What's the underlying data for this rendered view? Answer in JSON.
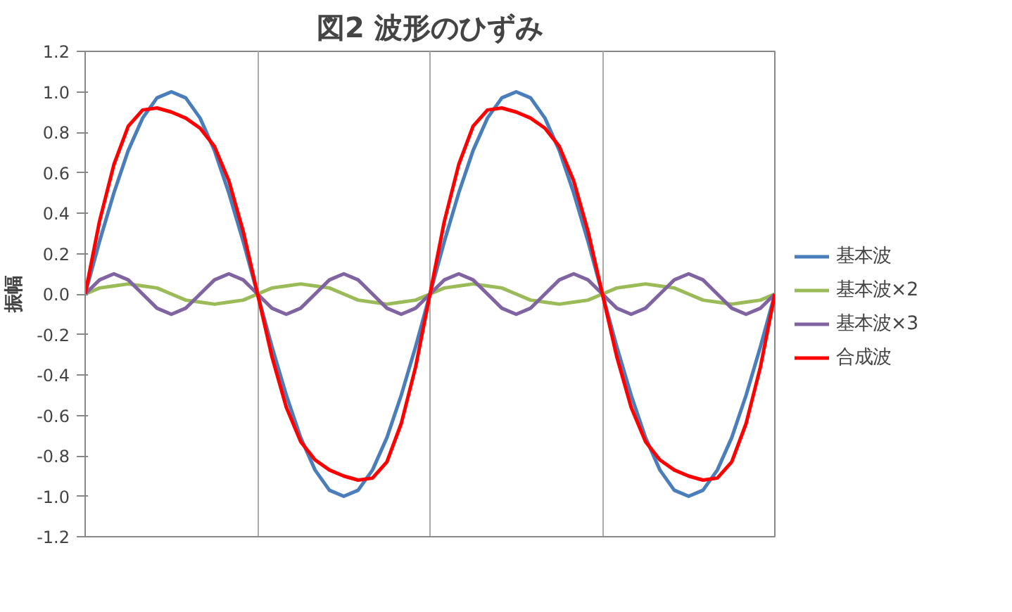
{
  "chart_data": {
    "type": "line",
    "title": "図2 波形のひずみ",
    "ylabel": "振幅",
    "categories": [
      null,
      null,
      null,
      null,
      null,
      null,
      null,
      null,
      null,
      null,
      null,
      null,
      null,
      null,
      null,
      null,
      null,
      null,
      null,
      null,
      null,
      null,
      null,
      null,
      null,
      null,
      null,
      null,
      null,
      null,
      null,
      null,
      null,
      null,
      null,
      null,
      null,
      null,
      null,
      null,
      null,
      null,
      null,
      null,
      null,
      null,
      null,
      null,
      null
    ],
    "ylim": [
      -1.2,
      1.2
    ],
    "yticks": [
      {
        "value": -1.2,
        "label": "-1.2"
      },
      {
        "value": -1,
        "label": "-1.0"
      },
      {
        "value": -0.8,
        "label": "-0.8"
      },
      {
        "value": -0.6,
        "label": "-0.6"
      },
      {
        "value": -0.4,
        "label": "-0.4"
      },
      {
        "value": -0.2,
        "label": "-0.2"
      },
      {
        "value": 0,
        "label": "0.0"
      },
      {
        "value": 0.2,
        "label": "0.2"
      },
      {
        "value": 0.4,
        "label": "0.4"
      },
      {
        "value": 0.6,
        "label": "0.6"
      },
      {
        "value": 0.8,
        "label": "0.8"
      },
      {
        "value": 1,
        "label": "1.0"
      },
      {
        "value": 1.2,
        "label": "1.2"
      }
    ],
    "grid": "x",
    "legend": "right",
    "series": [
      {
        "name": "基本波",
        "color": "#4a7ebb",
        "values": [
          0,
          0.26,
          0.5,
          0.71,
          0.87,
          0.97,
          1,
          0.97,
          0.87,
          0.71,
          0.5,
          0.26,
          0,
          -0.26,
          -0.5,
          -0.71,
          -0.87,
          -0.97,
          -1,
          -0.97,
          -0.87,
          -0.71,
          -0.5,
          -0.26,
          0,
          0.26,
          0.5,
          0.71,
          0.87,
          0.97,
          1,
          0.97,
          0.87,
          0.71,
          0.5,
          0.26,
          0,
          -0.26,
          -0.5,
          -0.71,
          -0.87,
          -0.97,
          -1,
          -0.97,
          -0.87,
          -0.71,
          -0.5,
          -0.26,
          0
        ]
      },
      {
        "name": "基本波×2",
        "color": "#9bbb59",
        "values": [
          0,
          0.03,
          0.04,
          0.05,
          0.04,
          0.03,
          0,
          -0.03,
          -0.04,
          -0.05,
          -0.04,
          -0.03,
          0,
          0.03,
          0.04,
          0.05,
          0.04,
          0.03,
          0,
          -0.03,
          -0.04,
          -0.05,
          -0.04,
          -0.03,
          0,
          0.03,
          0.04,
          0.05,
          0.04,
          0.03,
          0,
          -0.03,
          -0.04,
          -0.05,
          -0.04,
          -0.03,
          0,
          0.03,
          0.04,
          0.05,
          0.04,
          0.03,
          0,
          -0.03,
          -0.04,
          -0.05,
          -0.04,
          -0.03,
          0
        ]
      },
      {
        "name": "基本波×3",
        "color": "#8064a2",
        "values": [
          0,
          0.07,
          0.1,
          0.07,
          0,
          -0.07,
          -0.1,
          -0.07,
          0,
          0.07,
          0.1,
          0.07,
          0,
          -0.07,
          -0.1,
          -0.07,
          0,
          0.07,
          0.1,
          0.07,
          0,
          -0.07,
          -0.1,
          -0.07,
          0,
          0.07,
          0.1,
          0.07,
          0,
          -0.07,
          -0.1,
          -0.07,
          0,
          0.07,
          0.1,
          0.07,
          0,
          -0.07,
          -0.1,
          -0.07,
          0,
          0.07,
          0.1,
          0.07,
          0,
          -0.07,
          -0.1,
          -0.07,
          0
        ]
      },
      {
        "name": "合成波",
        "color": "#ff0000",
        "values": [
          0,
          0.36,
          0.64,
          0.83,
          0.91,
          0.92,
          0.9,
          0.87,
          0.82,
          0.73,
          0.56,
          0.31,
          0,
          -0.31,
          -0.56,
          -0.73,
          -0.82,
          -0.87,
          -0.9,
          -0.92,
          -0.91,
          -0.83,
          -0.64,
          -0.36,
          0,
          0.36,
          0.64,
          0.83,
          0.91,
          0.92,
          0.9,
          0.87,
          0.82,
          0.73,
          0.56,
          0.31,
          0,
          -0.31,
          -0.56,
          -0.73,
          -0.82,
          -0.87,
          -0.9,
          -0.92,
          -0.91,
          -0.83,
          -0.64,
          -0.36,
          0
        ]
      }
    ]
  }
}
